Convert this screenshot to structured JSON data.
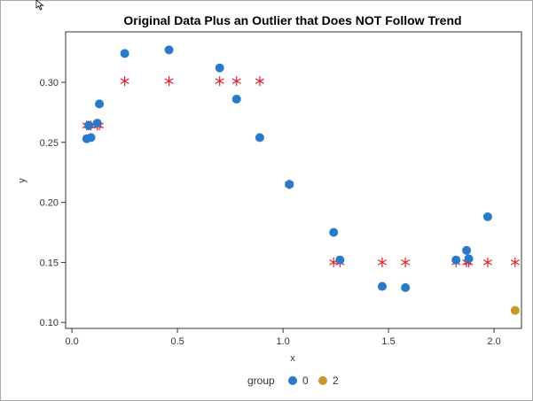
{
  "chart_data": {
    "type": "scatter",
    "title": "Original Data Plus an Outlier that Does NOT Follow Trend",
    "xlabel": "x",
    "ylabel": "y",
    "xlim": [
      -0.03,
      2.13
    ],
    "ylim": [
      0.095,
      0.342
    ],
    "x_ticks": [
      "0.0",
      "0.5",
      "1.0",
      "1.5",
      "2.0"
    ],
    "x_tick_values": [
      0.0,
      0.5,
      1.0,
      1.5,
      2.0
    ],
    "y_ticks": [
      "0.10",
      "0.15",
      "0.20",
      "0.25",
      "0.30"
    ],
    "y_tick_values": [
      0.1,
      0.15,
      0.2,
      0.25,
      0.3
    ],
    "grid": false,
    "legend": {
      "placement": "bottom",
      "title": "group",
      "entries": [
        {
          "label": "0",
          "color": "#2a7ac9"
        },
        {
          "label": "2",
          "color": "#c79a2c"
        }
      ]
    },
    "series": [
      {
        "name": "0",
        "marker": "circle",
        "color": "#2a7ac9",
        "points": [
          {
            "x": 0.07,
            "y": 0.253
          },
          {
            "x": 0.08,
            "y": 0.264
          },
          {
            "x": 0.09,
            "y": 0.254
          },
          {
            "x": 0.12,
            "y": 0.266
          },
          {
            "x": 0.13,
            "y": 0.282
          },
          {
            "x": 0.25,
            "y": 0.324
          },
          {
            "x": 0.46,
            "y": 0.327
          },
          {
            "x": 0.7,
            "y": 0.312
          },
          {
            "x": 0.78,
            "y": 0.286
          },
          {
            "x": 0.89,
            "y": 0.254
          },
          {
            "x": 1.03,
            "y": 0.215
          },
          {
            "x": 1.24,
            "y": 0.175
          },
          {
            "x": 1.27,
            "y": 0.152
          },
          {
            "x": 1.47,
            "y": 0.13
          },
          {
            "x": 1.58,
            "y": 0.129
          },
          {
            "x": 1.82,
            "y": 0.152
          },
          {
            "x": 1.87,
            "y": 0.16
          },
          {
            "x": 1.88,
            "y": 0.153
          },
          {
            "x": 1.97,
            "y": 0.188
          }
        ]
      },
      {
        "name": "2",
        "marker": "circle",
        "color": "#c79a2c",
        "points": [
          {
            "x": 2.1,
            "y": 0.11
          }
        ]
      },
      {
        "marker": "star",
        "color": "#e3202b",
        "points": [
          {
            "x": 0.07,
            "y": 0.264
          },
          {
            "x": 0.08,
            "y": 0.264
          },
          {
            "x": 0.09,
            "y": 0.264
          },
          {
            "x": 0.12,
            "y": 0.264
          },
          {
            "x": 0.13,
            "y": 0.264
          },
          {
            "x": 0.25,
            "y": 0.301
          },
          {
            "x": 0.46,
            "y": 0.301
          },
          {
            "x": 0.7,
            "y": 0.301
          },
          {
            "x": 0.78,
            "y": 0.301
          },
          {
            "x": 0.89,
            "y": 0.301
          },
          {
            "x": 1.03,
            "y": 0.215
          },
          {
            "x": 1.24,
            "y": 0.15
          },
          {
            "x": 1.27,
            "y": 0.15
          },
          {
            "x": 1.47,
            "y": 0.15
          },
          {
            "x": 1.58,
            "y": 0.15
          },
          {
            "x": 1.82,
            "y": 0.15
          },
          {
            "x": 1.87,
            "y": 0.15
          },
          {
            "x": 1.88,
            "y": 0.15
          },
          {
            "x": 1.97,
            "y": 0.15
          },
          {
            "x": 2.1,
            "y": 0.15
          }
        ]
      }
    ]
  },
  "colors": {
    "axis": "#333333",
    "frame": "#a9a9a9"
  },
  "icons": {
    "cursor": "mouse-pointer-icon"
  }
}
